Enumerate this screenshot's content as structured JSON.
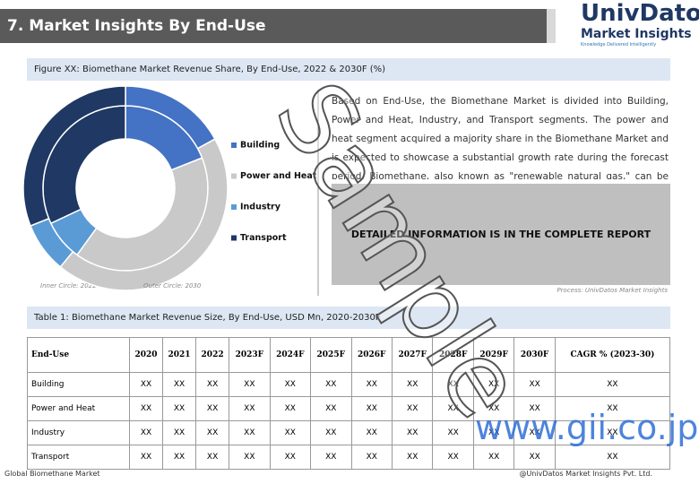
{
  "header": {
    "title": "7. Market Insights By End-Use",
    "logo_name": "UnivDatos",
    "logo_sub": "Market Insights",
    "logo_tagline": "Knowledge Delivered Intelligently"
  },
  "figure_caption": "Figure XX: Biomethane Market Revenue Share, By End-Use, 2022 & 2030F (%)",
  "chart_data": {
    "type": "donut",
    "categories": [
      "Building",
      "Power and Heat",
      "Industry",
      "Transport"
    ],
    "colors": [
      "#4472c4",
      "#c9c9c9",
      "#5b9bd5",
      "#1f3864"
    ],
    "series": [
      {
        "name": "Inner Circle: 2022",
        "values": [
          19,
          41,
          8,
          32
        ]
      },
      {
        "name": "Outer Circle: 2030",
        "values": [
          17,
          44,
          8,
          31
        ]
      }
    ]
  },
  "paragraph": "Based on End-Use, the Biomethane Market is divided into Building, Power and Heat, Industry, and Transport segments. The power and heat segment acquired a majority share in the Biomethane Market and is expected to showcase a substantial growth rate during the forecast period. Biomethane, also known as \"renewable natural gas,\" can be used in various energy applications.",
  "notice": "DETAILED INFORMATION IS IN THE COMPLETE REPORT",
  "source": "Process: UnivDatos Market Insights",
  "table_caption": "Table 1: Biomethane Market Revenue Size, By End-Use, USD Mn, 2020-2030F",
  "table": {
    "header": [
      "End-Use",
      "2020",
      "2021",
      "2022",
      "2023F",
      "2024F",
      "2025F",
      "2026F",
      "2027F",
      "2028F",
      "2029F",
      "2030F",
      "CAGR % (2023-30)"
    ],
    "rows": [
      [
        "Building",
        "XX",
        "XX",
        "XX",
        "XX",
        "XX",
        "XX",
        "XX",
        "XX",
        "XX",
        "XX",
        "XX",
        "XX"
      ],
      [
        "Power and Heat",
        "XX",
        "XX",
        "XX",
        "XX",
        "XX",
        "XX",
        "XX",
        "XX",
        "XX",
        "XX",
        "XX",
        "XX"
      ],
      [
        "Industry",
        "XX",
        "XX",
        "XX",
        "XX",
        "XX",
        "XX",
        "XX",
        "XX",
        "XX",
        "XX",
        "XX",
        "XX"
      ],
      [
        "Transport",
        "XX",
        "XX",
        "XX",
        "XX",
        "XX",
        "XX",
        "XX",
        "XX",
        "XX",
        "XX",
        "XX",
        "XX"
      ]
    ]
  },
  "footer": {
    "left": "Global Biomethane Market",
    "right": "@UnivDatos Market Insights Pvt. Ltd."
  },
  "watermark": "Sample",
  "site_mark": "www.gii.co.jp"
}
